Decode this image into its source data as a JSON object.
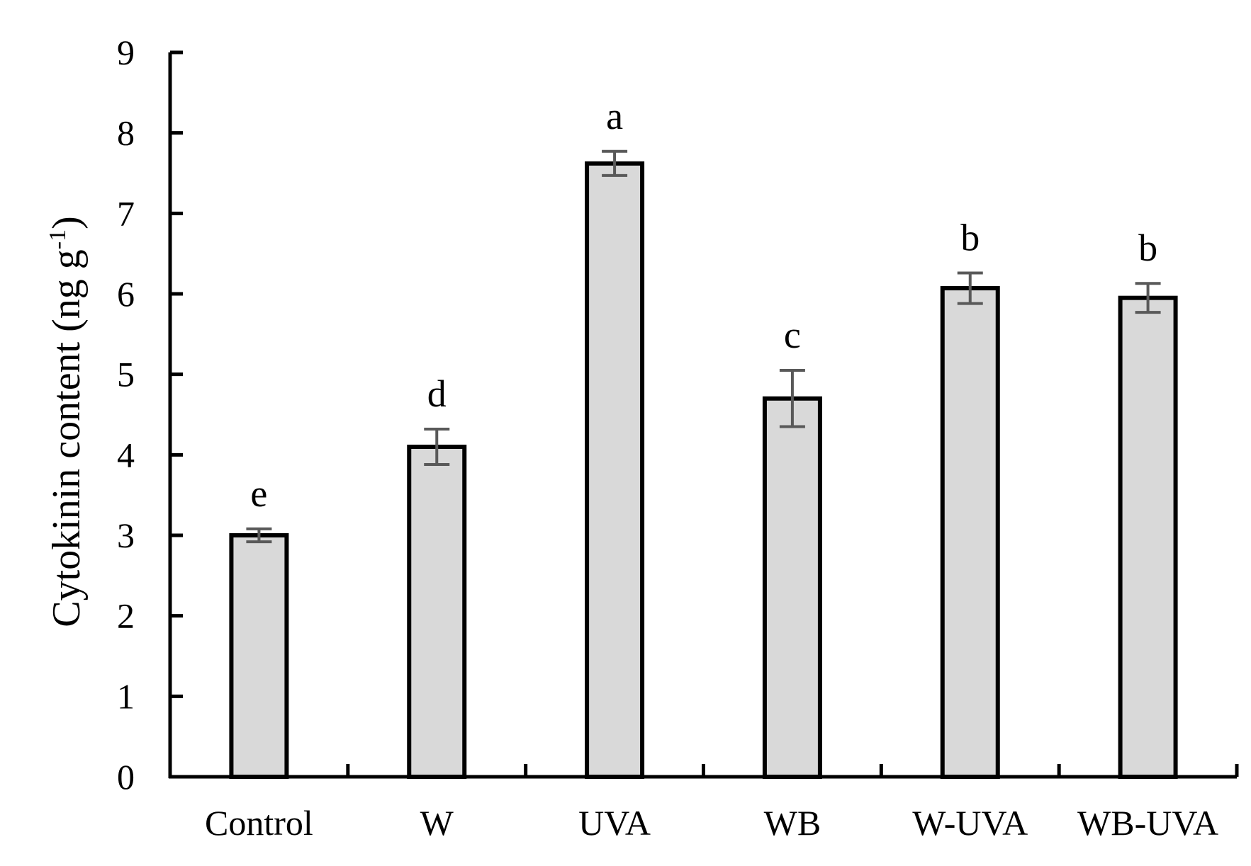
{
  "chart_data": {
    "type": "bar",
    "title": "",
    "xlabel": "",
    "ylabel": {
      "main": "Cytokinin content (ng g",
      "superscript": "-1",
      "close": ")"
    },
    "ylim": [
      0,
      9
    ],
    "yticks": [
      "0",
      "1",
      "2",
      "3",
      "4",
      "5",
      "6",
      "7",
      "8",
      "9"
    ],
    "categories": [
      "Control",
      "W",
      "UVA",
      "WB",
      "W-UVA",
      "WB-UVA"
    ],
    "values": [
      3.0,
      4.1,
      7.62,
      4.7,
      6.07,
      5.95
    ],
    "errors": [
      0.08,
      0.22,
      0.15,
      0.35,
      0.19,
      0.18
    ],
    "significance": [
      "e",
      "d",
      "a",
      "c",
      "b",
      "b"
    ],
    "colors": {
      "bar_fill": "#d9d9d9",
      "bar_stroke": "#000000",
      "error_bar": "#595959",
      "axis": "#000000"
    }
  }
}
